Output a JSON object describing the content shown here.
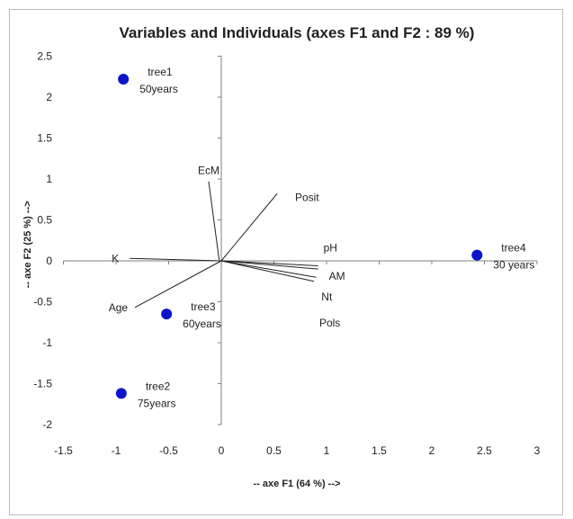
{
  "chart_data": {
    "type": "scatter",
    "title": "Variables and Individuals (axes F1 and F2 : 89 %)",
    "xlabel": "-- axe F1 (64 %) -->",
    "ylabel": "-- axe F2 (25 %) -->",
    "xlim": [
      -1.5,
      3
    ],
    "ylim": [
      -2,
      2.5
    ],
    "x_ticks": [
      "-1.5",
      "-1",
      "-0.5",
      "0",
      "0.5",
      "1",
      "1.5",
      "2",
      "2.5",
      "3"
    ],
    "y_ticks": [
      "2.5",
      "2",
      "1.5",
      "1",
      "0.5",
      "0",
      "-0.5",
      "-1",
      "-1.5",
      "-2"
    ],
    "grid": false,
    "variables": [
      {
        "name": "EcM",
        "x": -0.02,
        "y": 0.01,
        "x1": -0.12,
        "y1": 0.97
      },
      {
        "name": "Posit",
        "x": 0,
        "y": 0,
        "x1": 0.53,
        "y1": 0.82
      },
      {
        "name": "K",
        "x": 0,
        "y": 0,
        "x1": -0.87,
        "y1": 0.03
      },
      {
        "name": "Age",
        "x": 0,
        "y": 0,
        "x1": -0.82,
        "y1": -0.57
      },
      {
        "name": "pH",
        "x": 0,
        "y": 0,
        "x1": 0.92,
        "y1": -0.06
      },
      {
        "name": "AM",
        "x": 0,
        "y": 0,
        "x1": 0.92,
        "y1": -0.1
      },
      {
        "name": "Nt",
        "x": 0,
        "y": 0,
        "x1": 0.9,
        "y1": -0.2
      },
      {
        "name": "Pols",
        "x": 0,
        "y": 0,
        "x1": 0.88,
        "y1": -0.25
      }
    ],
    "individuals": [
      {
        "name": "tree1",
        "sub": "50years",
        "x": -0.93,
        "y": 2.22
      },
      {
        "name": "tree2",
        "sub": "75years",
        "x": -0.95,
        "y": -1.62
      },
      {
        "name": "tree3",
        "sub": "60years",
        "x": -0.52,
        "y": -0.65
      },
      {
        "name": "tree4",
        "sub": "30 years",
        "x": 2.43,
        "y": 0.07
      }
    ],
    "colors": {
      "points": "#0a14c8",
      "lines": "#222222",
      "axes": "#808080"
    }
  }
}
